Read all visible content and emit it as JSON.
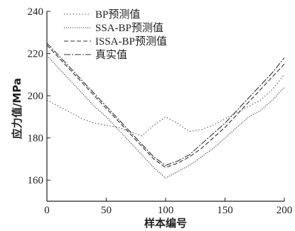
{
  "chart_data": {
    "type": "line",
    "xlabel": "样本编号",
    "ylabel": "应力值/MPa",
    "xlim": [
      0,
      200
    ],
    "ylim": [
      150,
      240
    ],
    "xticks": [
      0,
      50,
      100,
      150,
      200
    ],
    "yticks": [
      160,
      180,
      200,
      220,
      240
    ],
    "grid": false,
    "legend_position": "top-center",
    "series": [
      {
        "name": "BP预测值",
        "style": "dotted-sparse",
        "x": [
          0,
          10,
          20,
          30,
          40,
          50,
          60,
          70,
          80,
          90,
          100,
          110,
          120,
          130,
          140,
          150,
          160,
          170,
          180,
          190,
          200
        ],
        "y": [
          198,
          195,
          192,
          189,
          187,
          186,
          185,
          183,
          181,
          186,
          190,
          187,
          183,
          184,
          186,
          189,
          192,
          195,
          198,
          203,
          210
        ]
      },
      {
        "name": "SSA-BP预测值",
        "style": "dotted-dense",
        "x": [
          0,
          10,
          20,
          30,
          40,
          50,
          60,
          70,
          80,
          90,
          100,
          110,
          120,
          130,
          140,
          150,
          160,
          170,
          180,
          190,
          200
        ],
        "y": [
          219,
          213,
          207,
          201,
          195,
          190,
          184,
          178,
          172,
          166,
          161,
          164,
          167,
          171,
          175,
          180,
          185,
          190,
          193,
          198,
          204
        ]
      },
      {
        "name": "ISSA-BP预测值",
        "style": "dashed",
        "x": [
          0,
          10,
          20,
          30,
          40,
          50,
          60,
          70,
          80,
          90,
          100,
          110,
          120,
          130,
          140,
          150,
          160,
          170,
          180,
          190,
          200
        ],
        "y": [
          224,
          218,
          212,
          206,
          200,
          194,
          188,
          182,
          176,
          170,
          166,
          168,
          171,
          175,
          180,
          185,
          191,
          197,
          203,
          209,
          215
        ]
      },
      {
        "name": "真实值",
        "style": "dash-dot",
        "x": [
          0,
          10,
          20,
          30,
          40,
          50,
          60,
          70,
          80,
          90,
          100,
          110,
          120,
          130,
          140,
          150,
          160,
          170,
          180,
          190,
          200
        ],
        "y": [
          225,
          219,
          213,
          207,
          201,
          195,
          189,
          183,
          177,
          171,
          167,
          169,
          172,
          177,
          182,
          187,
          193,
          199,
          205,
          211,
          218
        ]
      }
    ]
  }
}
